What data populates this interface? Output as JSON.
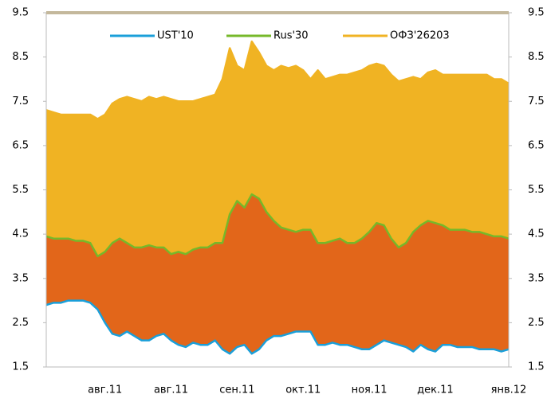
{
  "chart_data": {
    "type": "area",
    "categories": [
      null,
      null,
      null,
      null,
      null,
      null,
      null,
      null,
      "авг.11",
      null,
      null,
      null,
      null,
      null,
      null,
      null,
      null,
      "авг.11",
      null,
      null,
      null,
      null,
      null,
      null,
      null,
      null,
      "сен.11",
      null,
      null,
      null,
      null,
      null,
      null,
      null,
      null,
      "окт.11",
      null,
      null,
      null,
      null,
      null,
      null,
      null,
      null,
      "ноя.11",
      null,
      null,
      null,
      null,
      null,
      null,
      null,
      null,
      "дек.11",
      null,
      null,
      null,
      null,
      null,
      null,
      null,
      null,
      null,
      "янв.12"
    ],
    "series": [
      {
        "name": "ОФЗ'26203",
        "color": "#f0b323",
        "fill": "#f0b323",
        "values": [
          7.3,
          7.25,
          7.2,
          7.2,
          7.2,
          7.2,
          7.2,
          7.1,
          7.2,
          7.45,
          7.55,
          7.6,
          7.55,
          7.5,
          7.6,
          7.55,
          7.6,
          7.55,
          7.5,
          7.5,
          7.5,
          7.55,
          7.6,
          7.65,
          8.0,
          8.7,
          8.3,
          8.2,
          8.85,
          8.6,
          8.3,
          8.2,
          8.3,
          8.25,
          8.3,
          8.2,
          8.0,
          8.2,
          8.0,
          8.05,
          8.1,
          8.1,
          8.15,
          8.2,
          8.3,
          8.35,
          8.3,
          8.1,
          7.95,
          8.0,
          8.05,
          8.0,
          8.15,
          8.2,
          8.1,
          8.1,
          8.1,
          8.1,
          8.1,
          8.1,
          8.1,
          8.0,
          8.0,
          7.9
        ]
      },
      {
        "name": "Rus'30",
        "color": "#76b82a",
        "fill": "#e2661a",
        "values": [
          4.45,
          4.4,
          4.4,
          4.4,
          4.35,
          4.35,
          4.3,
          4.0,
          4.1,
          4.3,
          4.4,
          4.3,
          4.2,
          4.2,
          4.25,
          4.2,
          4.2,
          4.05,
          4.1,
          4.05,
          4.15,
          4.2,
          4.2,
          4.3,
          4.3,
          4.95,
          5.25,
          5.1,
          5.4,
          5.3,
          5.0,
          4.8,
          4.65,
          4.6,
          4.55,
          4.6,
          4.6,
          4.3,
          4.3,
          4.35,
          4.4,
          4.3,
          4.3,
          4.4,
          4.55,
          4.75,
          4.7,
          4.4,
          4.2,
          4.3,
          4.55,
          4.7,
          4.8,
          4.75,
          4.7,
          4.6,
          4.6,
          4.6,
          4.55,
          4.55,
          4.5,
          4.45,
          4.45,
          4.4
        ]
      },
      {
        "name": "UST'10",
        "color": "#1a9fd9",
        "fill": "#ffffff",
        "values": [
          2.9,
          2.95,
          2.95,
          3.0,
          3.0,
          3.0,
          2.95,
          2.8,
          2.5,
          2.25,
          2.2,
          2.3,
          2.2,
          2.1,
          2.1,
          2.2,
          2.25,
          2.1,
          2.0,
          1.95,
          2.05,
          2.0,
          2.0,
          2.1,
          1.9,
          1.8,
          1.95,
          2.0,
          1.8,
          1.9,
          2.1,
          2.2,
          2.2,
          2.25,
          2.3,
          2.3,
          2.3,
          2.0,
          2.0,
          2.05,
          2.0,
          2.0,
          1.95,
          1.9,
          1.9,
          2.0,
          2.1,
          2.05,
          2.0,
          1.95,
          1.85,
          2.0,
          1.9,
          1.85,
          2.0,
          2.0,
          1.95,
          1.95,
          1.95,
          1.9,
          1.9,
          1.9,
          1.85,
          1.9
        ]
      }
    ],
    "legend_order": [
      2,
      1,
      0
    ],
    "ylim": [
      1.5,
      9.5
    ],
    "yticks": [
      1.5,
      2.5,
      3.5,
      4.5,
      5.5,
      6.5,
      7.5,
      8.5,
      9.5
    ],
    "y2lim": [
      1.5,
      9.5
    ],
    "y2ticks": [
      1.5,
      2.5,
      3.5,
      4.5,
      5.5,
      6.5,
      7.5,
      8.5,
      9.5
    ],
    "legend": "top",
    "grid": false
  }
}
